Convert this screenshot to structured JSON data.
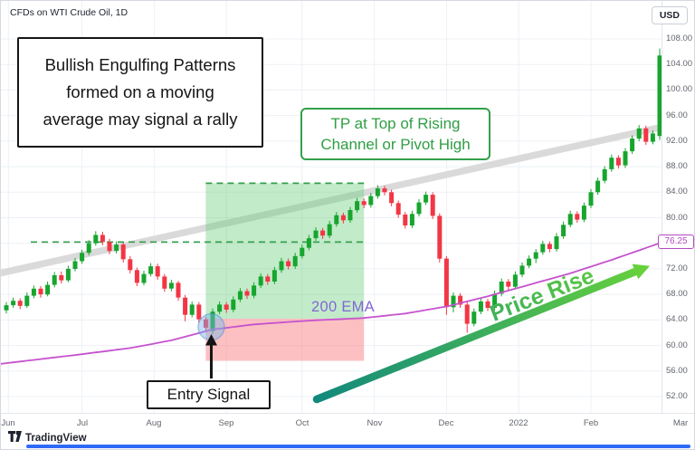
{
  "header": {
    "symbol_title": "CFDs on WTI Crude Oil, 1D",
    "currency_button": "USD"
  },
  "annotations": {
    "bullish_lines": [
      "Bullish Engulfing Patterns",
      "formed on a moving",
      "average may signal a rally"
    ],
    "tp_lines": [
      "TP at Top of Rising",
      "Channel or Pivot High"
    ],
    "entry_label": "Entry Signal",
    "price_rise_label": "Price Rise",
    "ema_label": "200 EMA"
  },
  "footer": {
    "logo_text": "TradingView"
  },
  "colors": {
    "candle_up": "#17a52e",
    "candle_down": "#f23645",
    "ema_line": "#c653ce",
    "ema_label_text": "#8466d6",
    "ema_tag": "#b44ac0",
    "trendline": "#d9d9d9",
    "tp_fill": "rgba(94,203,113,0.38)",
    "tp_edge": "#33a04a",
    "sl_fill": "rgba(247,104,110,0.42)",
    "grid": "#eef0f6",
    "axis_text": "#62666e",
    "annotation_green": "#2f9e44",
    "price_rise_start": "#11897d",
    "price_rise_end": "#67d13c",
    "entry_circle": "rgba(121,181,234,0.45)",
    "entry_circle_edge": "rgba(82,146,210,0.5)",
    "scrollbar_blue": "#2f6bf6",
    "black": "#151515"
  },
  "chart_data": {
    "type": "candlestick",
    "symbol": "CFDs on WTI Crude Oil",
    "interval": "1D",
    "y_axis": {
      "min": 52,
      "max": 108,
      "tick_step": 4,
      "tick_labels": [
        "108.00",
        "104.00",
        "100.00",
        "96.00",
        "92.00",
        "88.00",
        "84.00",
        "80.00",
        "76.00",
        "72.00",
        "68.00",
        "64.00",
        "60.00",
        "56.00",
        "52.00"
      ]
    },
    "x_axis": {
      "labels": [
        {
          "label": "Jun",
          "i": 0.3
        },
        {
          "label": "Jul",
          "i": 11
        },
        {
          "label": "Aug",
          "i": 21.5
        },
        {
          "label": "Sep",
          "i": 32
        },
        {
          "label": "Oct",
          "i": 43
        },
        {
          "label": "Nov",
          "i": 53.5
        },
        {
          "label": "Dec",
          "i": 64
        },
        {
          "label": "2022",
          "i": 74.5
        },
        {
          "label": "Feb",
          "i": 85
        },
        {
          "label": "Mar",
          "i": 98
        }
      ]
    },
    "candles": [
      [
        65.5,
        66.8,
        65.0,
        66.3
      ],
      [
        66.3,
        67.5,
        65.9,
        67.0
      ],
      [
        67.0,
        67.4,
        65.7,
        66.2
      ],
      [
        66.2,
        68.3,
        65.9,
        67.8
      ],
      [
        67.8,
        69.4,
        67.4,
        68.9
      ],
      [
        68.9,
        69.3,
        67.5,
        68.0
      ],
      [
        68.0,
        70.0,
        67.7,
        69.5
      ],
      [
        69.5,
        71.5,
        69.1,
        71.0
      ],
      [
        71.0,
        71.6,
        69.7,
        70.2
      ],
      [
        70.2,
        72.5,
        69.9,
        72.0
      ],
      [
        72.0,
        73.7,
        71.6,
        73.2
      ],
      [
        73.2,
        75.0,
        72.8,
        74.5
      ],
      [
        74.5,
        76.5,
        74.1,
        76.0
      ],
      [
        76.0,
        77.9,
        75.6,
        77.3
      ],
      [
        77.3,
        77.8,
        75.7,
        76.2
      ],
      [
        76.2,
        76.7,
        74.3,
        74.8
      ],
      [
        74.8,
        76.3,
        74.4,
        75.8
      ],
      [
        75.8,
        76.1,
        73.0,
        73.5
      ],
      [
        73.5,
        74.0,
        71.3,
        71.8
      ],
      [
        71.8,
        72.2,
        69.3,
        69.8
      ],
      [
        69.8,
        71.7,
        69.4,
        71.2
      ],
      [
        71.2,
        72.9,
        70.8,
        72.4
      ],
      [
        72.4,
        72.8,
        70.3,
        70.8
      ],
      [
        70.8,
        71.2,
        68.4,
        68.9
      ],
      [
        68.9,
        70.3,
        68.5,
        69.8
      ],
      [
        69.8,
        70.1,
        67.0,
        67.5
      ],
      [
        67.5,
        67.9,
        63.8,
        64.8
      ],
      [
        64.8,
        66.9,
        64.4,
        66.4
      ],
      [
        66.4,
        66.8,
        63.6,
        64.1
      ],
      [
        64.1,
        64.5,
        62.3,
        62.8
      ],
      [
        62.3,
        65.8,
        61.8,
        65.3
      ],
      [
        65.3,
        66.9,
        64.9,
        66.4
      ],
      [
        66.4,
        66.8,
        65.1,
        65.6
      ],
      [
        65.6,
        67.7,
        65.2,
        67.2
      ],
      [
        67.2,
        69.0,
        66.8,
        68.5
      ],
      [
        68.5,
        68.9,
        67.3,
        67.8
      ],
      [
        67.8,
        69.9,
        67.4,
        69.4
      ],
      [
        69.4,
        71.3,
        69.0,
        70.8
      ],
      [
        70.8,
        71.2,
        69.5,
        70.0
      ],
      [
        70.0,
        72.3,
        69.6,
        71.8
      ],
      [
        71.8,
        73.7,
        71.4,
        73.2
      ],
      [
        73.2,
        73.6,
        71.9,
        72.4
      ],
      [
        72.4,
        74.5,
        72.0,
        74.0
      ],
      [
        74.0,
        75.8,
        73.6,
        75.3
      ],
      [
        75.3,
        77.3,
        74.9,
        76.8
      ],
      [
        76.8,
        78.5,
        76.4,
        78.0
      ],
      [
        78.0,
        78.4,
        76.7,
        77.2
      ],
      [
        77.2,
        79.5,
        76.8,
        79.0
      ],
      [
        79.0,
        80.9,
        78.6,
        80.4
      ],
      [
        80.4,
        80.8,
        79.1,
        79.6
      ],
      [
        79.6,
        81.7,
        79.2,
        81.2
      ],
      [
        81.2,
        83.1,
        80.8,
        82.6
      ],
      [
        82.6,
        83.0,
        81.5,
        82.0
      ],
      [
        82.0,
        83.9,
        81.6,
        83.4
      ],
      [
        83.4,
        85.1,
        83.0,
        84.6
      ],
      [
        84.6,
        85.0,
        83.5,
        84.0
      ],
      [
        84.0,
        84.4,
        81.8,
        82.3
      ],
      [
        82.3,
        82.7,
        80.0,
        80.5
      ],
      [
        80.5,
        80.9,
        78.3,
        78.8
      ],
      [
        78.8,
        81.1,
        78.4,
        80.6
      ],
      [
        80.6,
        82.9,
        80.2,
        82.4
      ],
      [
        82.4,
        84.1,
        82.0,
        83.6
      ],
      [
        83.6,
        84.0,
        79.8,
        80.3
      ],
      [
        80.3,
        80.7,
        73.0,
        73.6
      ],
      [
        73.6,
        74.0,
        64.8,
        66.0
      ],
      [
        66.0,
        68.3,
        65.2,
        67.8
      ],
      [
        67.8,
        68.2,
        65.9,
        66.4
      ],
      [
        66.4,
        66.8,
        62.0,
        63.4
      ],
      [
        63.4,
        65.8,
        63.0,
        65.3
      ],
      [
        65.3,
        67.4,
        64.9,
        66.9
      ],
      [
        66.9,
        67.3,
        65.4,
        65.9
      ],
      [
        65.9,
        68.6,
        65.5,
        68.1
      ],
      [
        68.1,
        70.5,
        67.7,
        70.0
      ],
      [
        70.0,
        70.4,
        68.7,
        69.2
      ],
      [
        69.2,
        71.6,
        68.8,
        71.1
      ],
      [
        71.1,
        73.0,
        70.7,
        72.5
      ],
      [
        72.5,
        74.1,
        72.1,
        73.6
      ],
      [
        73.6,
        75.1,
        72.9,
        74.6
      ],
      [
        74.6,
        76.4,
        74.2,
        75.9
      ],
      [
        75.9,
        76.3,
        74.6,
        75.1
      ],
      [
        75.1,
        77.6,
        74.7,
        77.1
      ],
      [
        77.1,
        79.4,
        76.7,
        78.9
      ],
      [
        78.9,
        81.1,
        78.5,
        80.6
      ],
      [
        80.6,
        81.0,
        79.2,
        79.7
      ],
      [
        79.7,
        82.4,
        79.3,
        81.9
      ],
      [
        81.9,
        84.5,
        81.5,
        84.0
      ],
      [
        84.0,
        86.3,
        83.6,
        85.8
      ],
      [
        85.8,
        88.1,
        85.4,
        87.6
      ],
      [
        87.6,
        89.9,
        87.2,
        89.4
      ],
      [
        89.4,
        89.8,
        87.7,
        88.2
      ],
      [
        88.2,
        90.9,
        87.8,
        90.4
      ],
      [
        90.4,
        92.9,
        90.0,
        92.4
      ],
      [
        92.4,
        94.5,
        92.0,
        94.0
      ],
      [
        94.0,
        94.4,
        91.4,
        91.9
      ],
      [
        91.9,
        93.7,
        91.5,
        93.2
      ],
      [
        92.8,
        106.5,
        92.2,
        105.4
      ]
    ],
    "ema_200": {
      "label": "200 EMA",
      "last_value": 76.25,
      "anchors": [
        [
          -1,
          57.1
        ],
        [
          10,
          58.5
        ],
        [
          18,
          59.6
        ],
        [
          24,
          60.8
        ],
        [
          30,
          62.5
        ],
        [
          36,
          63.3
        ],
        [
          44,
          63.9
        ],
        [
          52,
          64.3
        ],
        [
          58,
          65.0
        ],
        [
          64,
          66.1
        ],
        [
          70,
          67.7
        ],
        [
          76,
          69.5
        ],
        [
          82,
          71.3
        ],
        [
          88,
          73.4
        ],
        [
          96,
          76.4
        ]
      ]
    },
    "trendline": {
      "anchors": [
        [
          -1,
          71.3
        ],
        [
          97,
          94.6
        ]
      ]
    },
    "tp_zone": {
      "from_i": 29,
      "to_i": 52,
      "top": 85.4,
      "bottom": 64.2
    },
    "sl_zone": {
      "from_i": 29,
      "to_i": 52,
      "top": 64.2,
      "bottom": 57.6
    },
    "pivot_dash_price": 76.2,
    "entry": {
      "i": 29.8,
      "price": 62.9
    }
  }
}
